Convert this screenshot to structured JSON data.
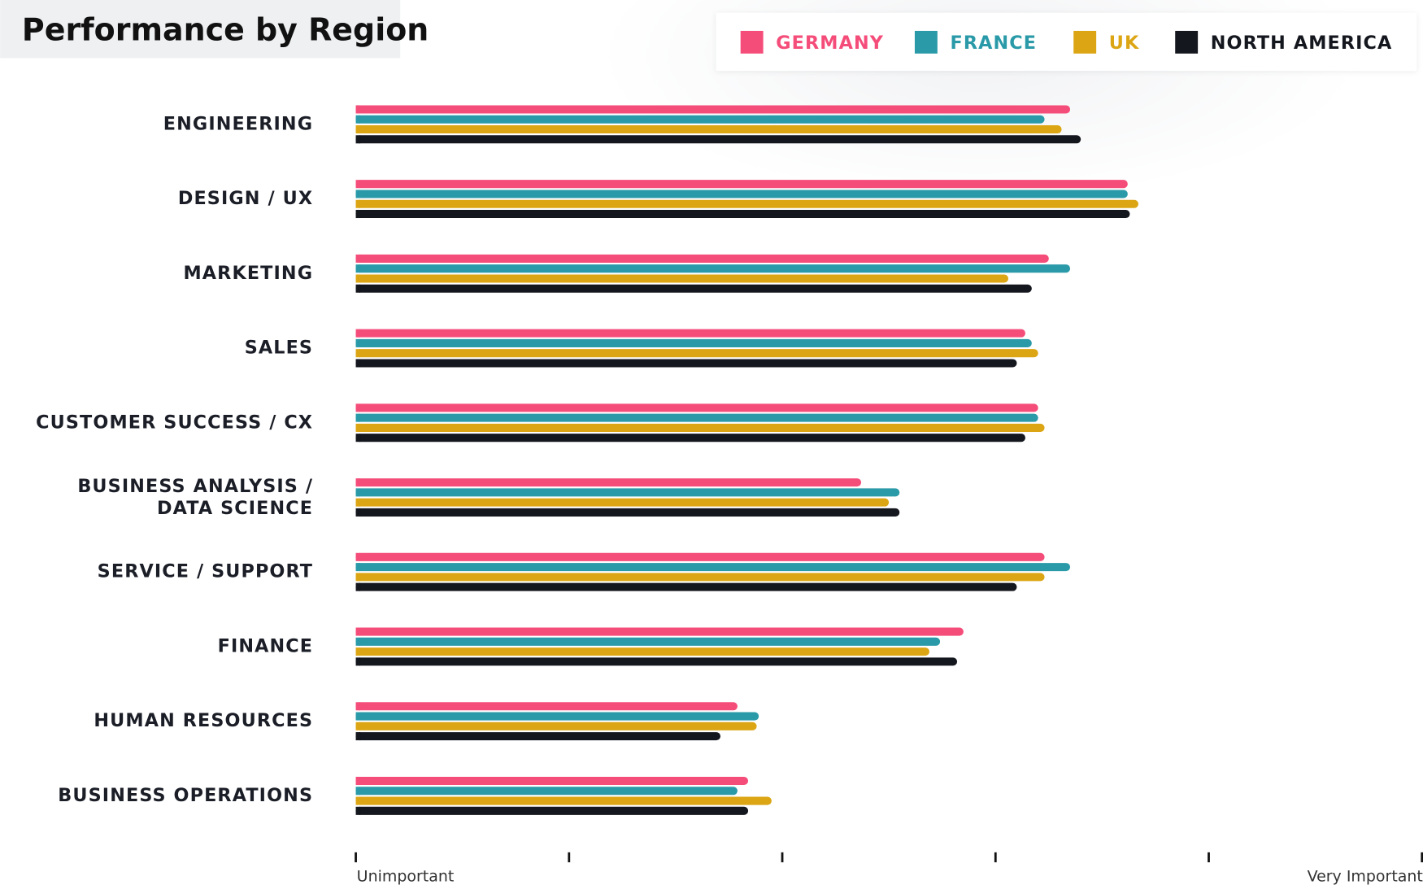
{
  "chart_data": {
    "type": "hbar",
    "title": "Performance by Region",
    "categories": [
      "ENGINEERING",
      "DESIGN / UX",
      "MARKETING",
      "SALES",
      "CUSTOMER SUCCESS / CX",
      "BUSINESS ANALYSIS /\nDATA SCIENCE",
      "SERVICE / SUPPORT",
      "FINANCE",
      "HUMAN RESOURCES",
      "BUSINESS OPERATIONS"
    ],
    "series": [
      {
        "name": "GERMANY",
        "color": "#f54d7a",
        "values": [
          3.35,
          3.62,
          3.25,
          3.14,
          3.2,
          2.37,
          3.23,
          2.85,
          1.79,
          1.84
        ]
      },
      {
        "name": "FRANCE",
        "color": "#2a9aa8",
        "values": [
          3.23,
          3.62,
          3.35,
          3.17,
          3.2,
          2.55,
          3.35,
          2.74,
          1.89,
          1.79
        ]
      },
      {
        "name": "UK",
        "color": "#dca514",
        "values": [
          3.31,
          3.67,
          3.06,
          3.2,
          3.23,
          2.5,
          3.23,
          2.69,
          1.88,
          1.95
        ]
      },
      {
        "name": "NORTH AMERICA",
        "color": "#15171f",
        "values": [
          3.4,
          3.63,
          3.17,
          3.1,
          3.14,
          2.55,
          3.1,
          2.82,
          1.71,
          1.84
        ]
      }
    ],
    "xlim": [
      0,
      5
    ],
    "xticks": [
      {
        "value": 0,
        "label": "Unimportant"
      },
      {
        "value": 1,
        "label": null
      },
      {
        "value": 2,
        "label": null
      },
      {
        "value": 3,
        "label": null
      },
      {
        "value": 4,
        "label": null
      },
      {
        "value": 5,
        "label": "Very Important"
      }
    ],
    "legend": "top-right"
  }
}
